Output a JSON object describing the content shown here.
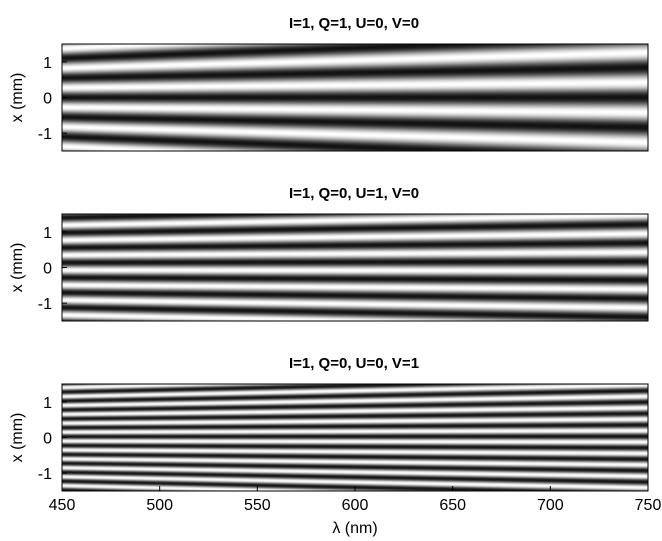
{
  "chart_data": [
    {
      "type": "heatmap",
      "title": "I=1, Q=1, U=0, V=0",
      "xlabel": "",
      "ylabel": "x (mm)",
      "xlim": [
        450,
        750
      ],
      "ylim": [
        -1.5,
        1.5
      ],
      "yticks": [
        "1",
        "0",
        "-1"
      ],
      "xticks": [],
      "colormap": "grayscale",
      "pattern": {
        "fringe_spacing_at_450nm_mm": 0.55,
        "fringe_spacing_at_750nm_mm": 0.84
      }
    },
    {
      "type": "heatmap",
      "title": "I=1, Q=0, U=1, V=0",
      "xlabel": "",
      "ylabel": "x (mm)",
      "xlim": [
        450,
        750
      ],
      "ylim": [
        -1.5,
        1.5
      ],
      "yticks": [
        "1",
        "0",
        "-1"
      ],
      "xticks": [],
      "colormap": "grayscale",
      "pattern": {
        "fringe_spacing_at_450nm_mm": 0.42,
        "fringe_spacing_at_750nm_mm": 0.52
      }
    },
    {
      "type": "heatmap",
      "title": "I=1, Q=0, U=0, V=1",
      "xlabel": "λ (nm)",
      "ylabel": "x (mm)",
      "xlim": [
        450,
        750
      ],
      "ylim": [
        -1.5,
        1.5
      ],
      "yticks": [
        "1",
        "0",
        "-1"
      ],
      "xticks": [
        "450",
        "500",
        "550",
        "600",
        "650",
        "700",
        "750"
      ],
      "colormap": "grayscale",
      "pattern": {
        "fringe_spacing_at_450nm_mm": 0.25,
        "fringe_spacing_at_750nm_mm": 0.32
      }
    }
  ]
}
